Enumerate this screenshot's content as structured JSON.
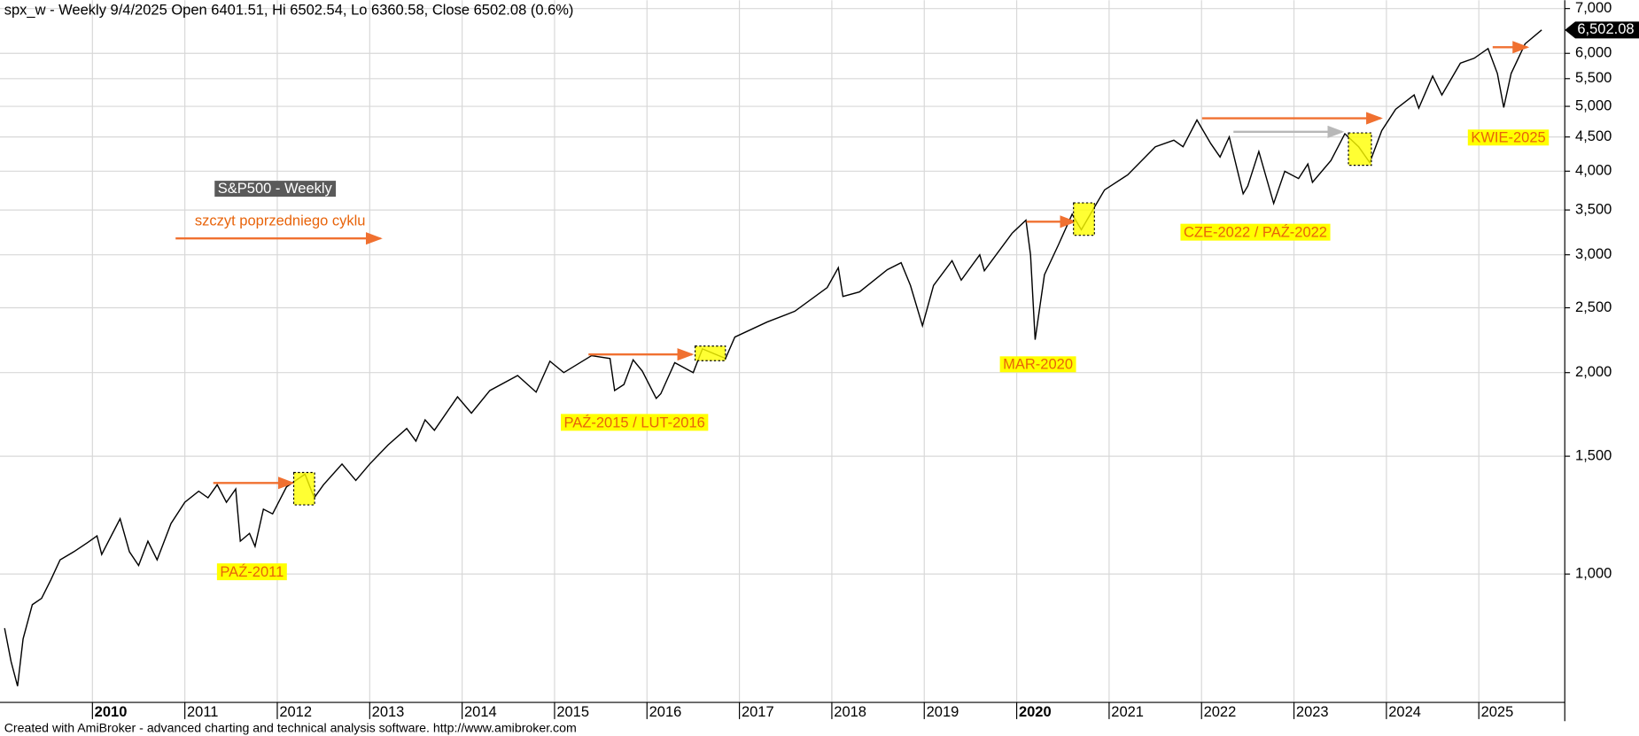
{
  "chart_data": {
    "type": "line",
    "title": "spx_w - Weekly 9/4/2025 Open 6401.51, Hi 6502.54, Lo 6360.58, Close 6502.08 (0.6%)",
    "footer": "Created with AmiBroker - advanced charting and technical analysis software. http://www.amibroker.com",
    "log_scale": true,
    "grid": true,
    "xlim": [
      2009,
      2025.93
    ],
    "ylim": [
      643,
      7205
    ],
    "xticks": [
      2010,
      2011,
      2012,
      2013,
      2014,
      2015,
      2016,
      2017,
      2018,
      2019,
      2020,
      2021,
      2022,
      2023,
      2024,
      2025
    ],
    "yticks": [
      {
        "value": 1000,
        "label": "1,000"
      },
      {
        "value": 1500,
        "label": "1,500"
      },
      {
        "value": 2000,
        "label": "2,000"
      },
      {
        "value": 2500,
        "label": "2,500"
      },
      {
        "value": 3000,
        "label": "3,000"
      },
      {
        "value": 3500,
        "label": "3,500"
      },
      {
        "value": 4000,
        "label": "4,000"
      },
      {
        "value": 4500,
        "label": "4,500"
      },
      {
        "value": 5000,
        "label": "5,000"
      },
      {
        "value": 5500,
        "label": "5,500"
      },
      {
        "value": 6000,
        "label": "6,000"
      },
      {
        "value": 7000,
        "label": "7,000"
      }
    ],
    "last_price": {
      "value": 6502.08,
      "label": "6,502.08"
    },
    "annotations": [
      "S&P500 - Weekly",
      "szczyt poprzedniego cyklu",
      "PAŹ-2011",
      "PAŹ-2015 / LUT-2016",
      "MAR-2020",
      "CZE-2022 / PAŹ-2022",
      "KWIE-2025"
    ],
    "series": [
      {
        "name": "spx_w",
        "color": "#000000",
        "x": [
          2009.05,
          2009.12,
          2009.19,
          2009.25,
          2009.35,
          2009.45,
          2009.55,
          2009.65,
          2009.8,
          2009.95,
          2010.05,
          2010.1,
          2010.3,
          2010.4,
          2010.5,
          2010.6,
          2010.7,
          2010.85,
          2011.0,
          2011.15,
          2011.25,
          2011.35,
          2011.45,
          2011.55,
          2011.6,
          2011.7,
          2011.76,
          2011.85,
          2011.95,
          2012.1,
          2012.3,
          2012.4,
          2012.5,
          2012.7,
          2012.85,
          2013.0,
          2013.2,
          2013.4,
          2013.5,
          2013.6,
          2013.7,
          2013.95,
          2014.1,
          2014.3,
          2014.6,
          2014.8,
          2014.95,
          2015.1,
          2015.4,
          2015.6,
          2015.65,
          2015.75,
          2015.85,
          2015.95,
          2016.1,
          2016.15,
          2016.3,
          2016.5,
          2016.6,
          2016.85,
          2016.95,
          2017.3,
          2017.6,
          2017.95,
          2018.07,
          2018.12,
          2018.3,
          2018.6,
          2018.75,
          2018.85,
          2018.98,
          2019.1,
          2019.3,
          2019.4,
          2019.6,
          2019.65,
          2019.95,
          2020.1,
          2020.15,
          2020.2,
          2020.3,
          2020.45,
          2020.6,
          2020.7,
          2020.85,
          2020.95,
          2021.2,
          2021.5,
          2021.7,
          2021.8,
          2021.95,
          2022.1,
          2022.2,
          2022.3,
          2022.45,
          2022.5,
          2022.62,
          2022.78,
          2022.9,
          2023.05,
          2023.15,
          2023.2,
          2023.4,
          2023.55,
          2023.7,
          2023.82,
          2023.95,
          2024.1,
          2024.3,
          2024.35,
          2024.5,
          2024.6,
          2024.8,
          2024.95,
          2025.1,
          2025.2,
          2025.27,
          2025.35,
          2025.5,
          2025.68
        ],
        "values": [
          830,
          740,
          680,
          800,
          900,
          920,
          980,
          1050,
          1080,
          1115,
          1140,
          1070,
          1210,
          1080,
          1030,
          1120,
          1050,
          1190,
          1280,
          1330,
          1300,
          1360,
          1280,
          1340,
          1120,
          1150,
          1100,
          1250,
          1230,
          1350,
          1410,
          1300,
          1360,
          1460,
          1380,
          1460,
          1560,
          1650,
          1580,
          1700,
          1640,
          1840,
          1740,
          1880,
          1980,
          1870,
          2080,
          2000,
          2120,
          2100,
          1880,
          1920,
          2090,
          2010,
          1830,
          1860,
          2070,
          2000,
          2170,
          2100,
          2260,
          2380,
          2470,
          2680,
          2870,
          2600,
          2640,
          2850,
          2920,
          2700,
          2350,
          2700,
          2940,
          2750,
          3000,
          2840,
          3230,
          3380,
          3000,
          2240,
          2800,
          3100,
          3450,
          3270,
          3550,
          3750,
          3950,
          4350,
          4450,
          4350,
          4770,
          4400,
          4200,
          4500,
          3700,
          3800,
          4280,
          3580,
          4000,
          3900,
          4100,
          3850,
          4150,
          4550,
          4350,
          4120,
          4600,
          4950,
          5200,
          4970,
          5550,
          5200,
          5800,
          5900,
          6100,
          5600,
          4980,
          5600,
          6200,
          6502.08
        ]
      }
    ]
  }
}
